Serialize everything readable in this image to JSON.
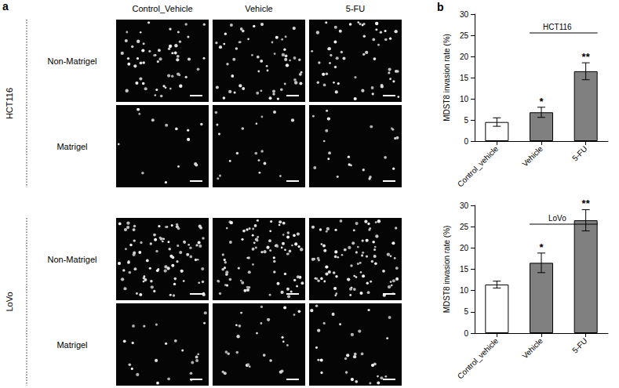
{
  "panel_labels": [
    "a",
    "b"
  ],
  "image_grid": {
    "columns": [
      "Control_Vehicle",
      "Vehicle",
      "5-FU"
    ],
    "groups": [
      {
        "cell_line": "HCT116",
        "rows": [
          "Non-Matrigel",
          "Matrigel"
        ]
      },
      {
        "cell_line": "LoVo",
        "rows": [
          "Non-Matrigel",
          "Matrigel"
        ]
      }
    ]
  },
  "chart_data": [
    {
      "type": "bar",
      "annotation": "HCT116",
      "categories": [
        "Control_vehicle",
        "Vehicle",
        "5-FU"
      ],
      "values": [
        4.5,
        6.8,
        16.5
      ],
      "errors": [
        1.0,
        1.2,
        2.0
      ],
      "significance": [
        null,
        "*",
        "**"
      ],
      "colors": [
        "#ffffff",
        "#808080",
        "#808080"
      ],
      "y_label": "MDST8 invasion rate (%)",
      "ylim": [
        0,
        30
      ],
      "yticks": [
        0,
        5,
        10,
        15,
        20,
        25,
        30
      ],
      "grid": false
    },
    {
      "type": "bar",
      "annotation": "LoVo",
      "categories": [
        "Control_vehicle",
        "Vehicle",
        "5-FU"
      ],
      "values": [
        11.4,
        16.5,
        26.5
      ],
      "errors": [
        0.8,
        2.3,
        2.5
      ],
      "significance": [
        null,
        "*",
        "**"
      ],
      "colors": [
        "#ffffff",
        "#808080",
        "#808080"
      ],
      "y_label": "MDST8 invasion rate (%)",
      "ylim": [
        0,
        30
      ],
      "yticks": [
        0,
        5,
        10,
        15,
        20,
        25,
        30
      ],
      "grid": false
    }
  ]
}
